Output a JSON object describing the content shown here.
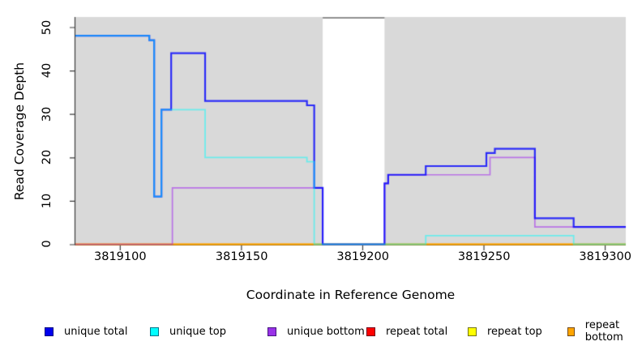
{
  "chart_data": {
    "type": "line",
    "subtype": "step-coverage",
    "title": "",
    "xlabel": "Coordinate in Reference Genome",
    "ylabel": "Read Coverage Depth",
    "xlim": [
      3819081.5,
      3819308.5
    ],
    "ylim": [
      0,
      52.3
    ],
    "xticks": [
      "3819100",
      "3819150",
      "3819200",
      "3819250",
      "3819300"
    ],
    "xtick_values": [
      3819100,
      3819150,
      3819200,
      3819250,
      3819300
    ],
    "yticks": [
      "0",
      "10",
      "20",
      "30",
      "40",
      "50"
    ],
    "ytick_values": [
      0,
      10,
      20,
      30,
      40,
      50
    ],
    "plot_background": "#d9d9d9",
    "page_background": "#ffffff",
    "axis_color": "#3c3c3c",
    "grid": false,
    "legend_position": "bottom",
    "masked_region": {
      "start": 3819183.5,
      "end": 3819209,
      "fill": "#ffffff",
      "top_border": "#8f8f8f"
    },
    "series": [
      {
        "name": "repeat total",
        "color": "#ff0000",
        "alpha": 0.7,
        "width": 1.6,
        "draw_order": 1,
        "segments": [
          [
            3819081.5,
            3819308.5,
            0
          ]
        ]
      },
      {
        "name": "repeat top",
        "color": "#ffff00",
        "alpha": 0.7,
        "width": 1.6,
        "draw_order": 2,
        "segments": [
          [
            3819081.5,
            3819308.5,
            0
          ]
        ]
      },
      {
        "name": "repeat bottom",
        "color": "#ffa500",
        "alpha": 0.9,
        "width": 2.0,
        "draw_order": 3,
        "segments": [
          [
            3819081.5,
            3819308.5,
            0
          ]
        ]
      },
      {
        "name": "unique bottom",
        "color": "#a020f0",
        "alpha": 0.55,
        "width": 1.7,
        "draw_order": 4,
        "segments": [
          [
            3819081.5,
            3819121.5,
            0
          ],
          [
            3819121.5,
            3819183.5,
            13
          ],
          [
            3819183.5,
            3819209,
            0
          ],
          [
            3819209,
            3819210.5,
            14
          ],
          [
            3819210.5,
            3819252.5,
            16
          ],
          [
            3819252.5,
            3819271,
            20
          ],
          [
            3819271,
            3819308.5,
            4
          ]
        ]
      },
      {
        "name": "unique total",
        "color": "#0000ff",
        "alpha": 0.8,
        "width": 2.2,
        "draw_order": 5,
        "segments": [
          [
            3819081.5,
            3819112,
            48
          ],
          [
            3819112,
            3819114,
            47
          ],
          [
            3819114,
            3819117,
            11
          ],
          [
            3819117,
            3819121,
            31
          ],
          [
            3819121,
            3819135,
            44
          ],
          [
            3819135,
            3819177,
            33
          ],
          [
            3819177,
            3819180,
            32
          ],
          [
            3819180,
            3819183.5,
            13
          ],
          [
            3819183.5,
            3819209,
            0
          ],
          [
            3819209,
            3819210.5,
            14
          ],
          [
            3819210.5,
            3819226,
            16
          ],
          [
            3819226,
            3819251,
            18
          ],
          [
            3819251,
            3819254.5,
            21
          ],
          [
            3819254.5,
            3819271,
            22
          ],
          [
            3819271,
            3819287,
            6
          ],
          [
            3819287,
            3819308.5,
            4
          ]
        ]
      },
      {
        "name": "unique top",
        "color": "#00ffff",
        "alpha": 0.5,
        "width": 1.8,
        "draw_order": 6,
        "segments": [
          [
            3819081.5,
            3819112,
            48
          ],
          [
            3819112,
            3819114,
            47
          ],
          [
            3819114,
            3819117,
            11
          ],
          [
            3819117,
            3819135,
            31
          ],
          [
            3819135,
            3819177,
            20
          ],
          [
            3819177,
            3819180,
            19
          ],
          [
            3819180,
            3819226,
            0
          ],
          [
            3819226,
            3819287,
            2
          ],
          [
            3819287,
            3819308.5,
            0
          ]
        ]
      }
    ],
    "legend": [
      {
        "label": "unique total",
        "color": "#0000ee"
      },
      {
        "label": "unique top",
        "color": "#00ffff"
      },
      {
        "label": "unique bottom",
        "color": "#9a32e8"
      },
      {
        "label": "repeat total",
        "color": "#ff0000"
      },
      {
        "label": "repeat top",
        "color": "#ffff00"
      },
      {
        "label": "repeat bottom",
        "color": "#ffa500"
      }
    ]
  }
}
